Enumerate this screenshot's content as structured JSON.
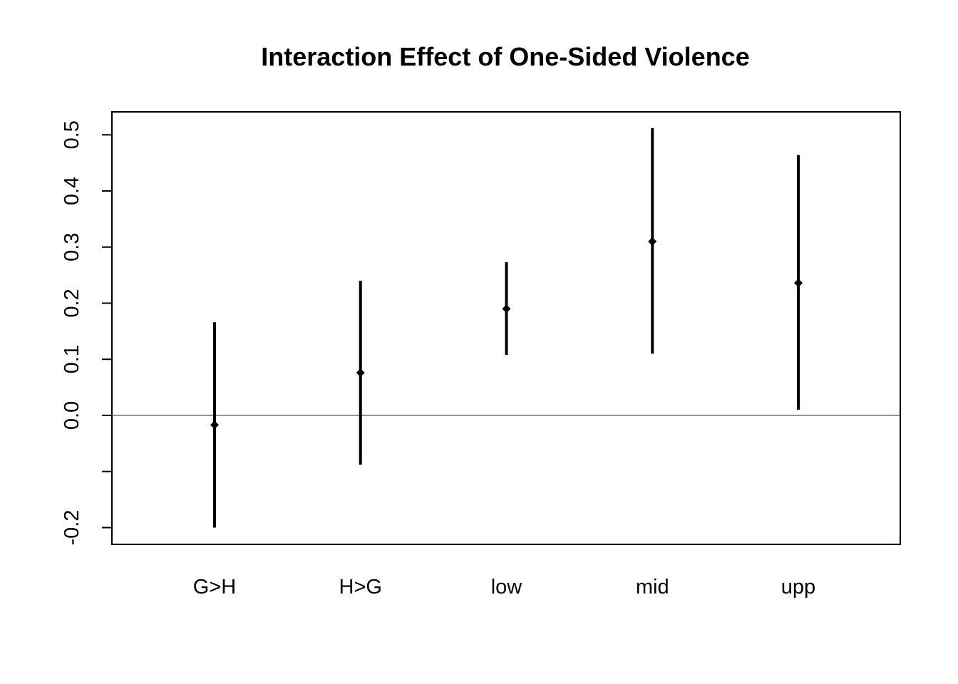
{
  "chart_data": {
    "type": "errorbar",
    "title": "Interaction Effect of One-Sided Violence",
    "xlabel": "",
    "ylabel": "",
    "categories": [
      "G>H",
      "H>G",
      "low",
      "mid",
      "upp"
    ],
    "estimates": [
      -0.017,
      0.076,
      0.19,
      0.31,
      0.236
    ],
    "lower": [
      -0.2,
      -0.088,
      0.108,
      0.11,
      0.01
    ],
    "upper": [
      0.166,
      0.24,
      0.273,
      0.512,
      0.464
    ],
    "yticks": [
      -0.2,
      -0.1,
      0.0,
      0.1,
      0.2,
      0.3,
      0.4,
      0.5
    ],
    "ytick_labels": [
      "-0.2",
      "",
      "0.0",
      "0.1",
      "0.2",
      "0.3",
      "0.4",
      "0.5"
    ],
    "ylim": [
      -0.228,
      0.542
    ],
    "reference_line": 0.0,
    "grid": false,
    "legend": "none"
  }
}
